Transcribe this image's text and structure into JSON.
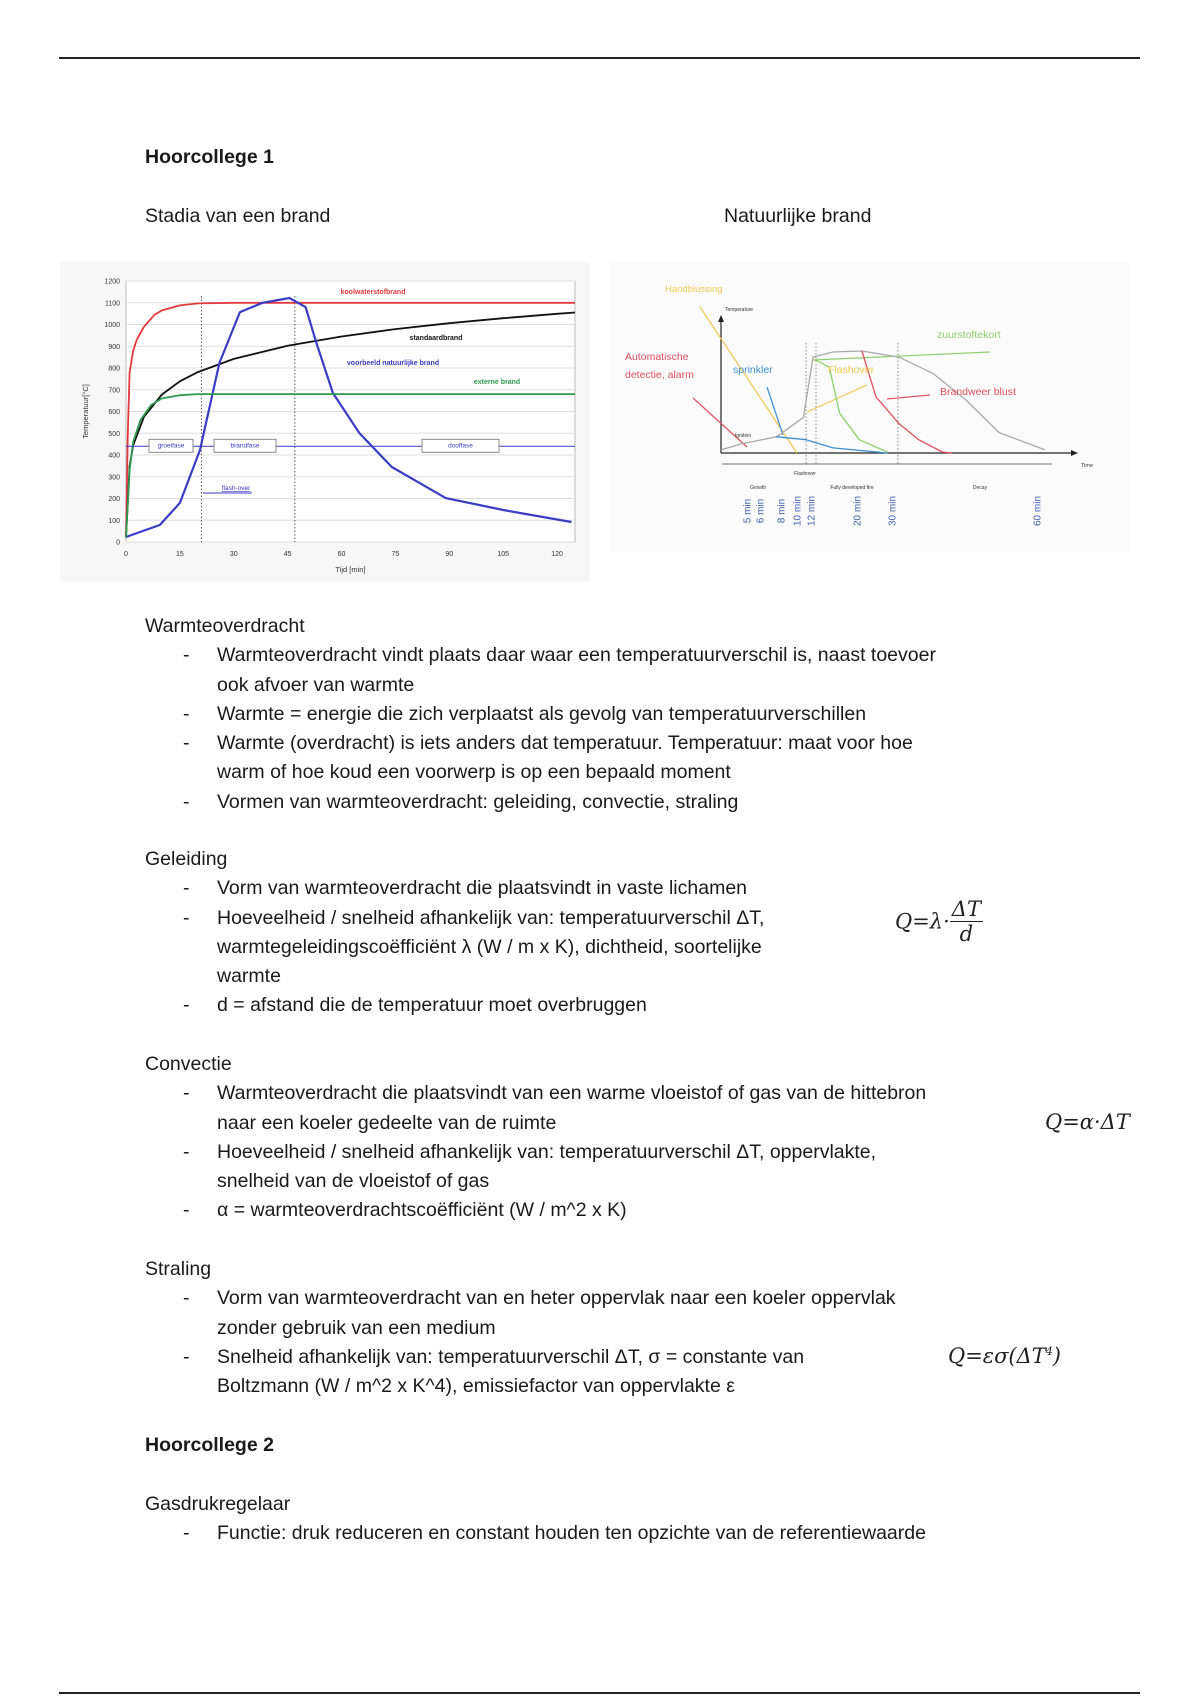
{
  "section1": {
    "title": "Hoorcollege 1",
    "left_caption": "Stadia van een brand",
    "right_caption": "Natuurlijke brand"
  },
  "warmteoverdracht": {
    "heading": "Warmteoverdracht",
    "bullets": [
      [
        "Warmteoverdracht vindt plaats daar waar een temperatuurverschil is, naast toevoer",
        "ook afvoer van warmte"
      ],
      [
        "Warmte = energie die zich verplaatst als gevolg van temperatuurverschillen"
      ],
      [
        "Warmte (overdracht) is iets anders dat temperatuur. Temperatuur: maat voor hoe",
        "warm of hoe koud een voorwerp is op een bepaald moment"
      ],
      [
        "Vormen van warmteoverdracht: geleiding, convectie, straling"
      ]
    ]
  },
  "geleiding": {
    "heading": "Geleiding",
    "bullets": [
      [
        "Vorm van warmteoverdracht die plaatsvindt in vaste lichamen"
      ],
      [
        "Hoeveelheid / snelheid afhankelijk van: temperatuurverschil ΔT,",
        "warmtegeleidingscoëfficiënt λ (W / m x K), dichtheid, soortelijke",
        "warmte"
      ],
      [
        "d = afstand die de temperatuur moet overbruggen"
      ]
    ],
    "formula": {
      "lhs": "Q=λ·",
      "num": "ΔT",
      "den": "d"
    }
  },
  "convectie": {
    "heading": "Convectie",
    "bullets": [
      [
        "Warmteoverdracht die plaatsvindt van een warme vloeistof of gas van de hittebron",
        "naar een koeler gedeelte van de ruimte"
      ],
      [
        "Hoeveelheid / snelheid afhankelijk van: temperatuurverschil ΔT, oppervlakte,",
        "snelheid van de vloeistof of gas"
      ],
      [
        "α = warmteoverdrachtscoëfficiënt (W / m^2 x K)"
      ]
    ],
    "formula": "Q=α·ΔT"
  },
  "straling": {
    "heading": "Straling",
    "bullets": [
      [
        "Vorm van warmteoverdracht van en heter oppervlak naar een koeler oppervlak",
        "zonder gebruik van een medium"
      ],
      [
        "Snelheid afhankelijk van: temperatuurverschil ΔT, σ = constante van",
        "Boltzmann (W / m^2 x K^4), emissiefactor van oppervlakte ε"
      ]
    ],
    "formula": {
      "base": "Q=εσ(ΔT",
      "exp": "4",
      "close": ")"
    }
  },
  "section2": {
    "title": "Hoorcollege 2"
  },
  "gasdrukregelaar": {
    "heading": "Gasdrukregelaar",
    "bullets": [
      [
        "Functie: druk reduceren en constant houden ten opzichte van de referentiewaarde"
      ]
    ]
  },
  "bullet_marker": "-",
  "chart_data": [
    {
      "type": "line",
      "xlabel": "Tijd [min]",
      "ylabel": "Temperatuur[°C]",
      "xlim": [
        0,
        125
      ],
      "ylim": [
        0,
        1200
      ],
      "xticks": [
        0,
        15,
        30,
        45,
        60,
        75,
        90,
        105,
        120
      ],
      "yticks": [
        0,
        100,
        200,
        300,
        400,
        500,
        600,
        700,
        800,
        900,
        1000,
        1100,
        1200
      ],
      "grid": true,
      "series": [
        {
          "name": "koolwaterstofbrand",
          "color": "#e0393e",
          "x": [
            0,
            0.5,
            1,
            2,
            3,
            5,
            8,
            10,
            15,
            20,
            30,
            125
          ],
          "y": [
            20,
            500,
            780,
            880,
            930,
            990,
            1045,
            1065,
            1088,
            1097,
            1100,
            1100
          ]
        },
        {
          "name": "standaardbrand",
          "color": "#111111",
          "x": [
            0,
            1,
            2,
            5,
            10,
            15,
            20,
            30,
            45,
            60,
            75,
            90,
            105,
            120,
            125
          ],
          "y": [
            20,
            349,
            445,
            576,
            678,
            739,
            781,
            842,
            902,
            945,
            979,
            1006,
            1029,
            1049,
            1055
          ]
        },
        {
          "name": "voorbeeld natuurlijke brand",
          "color": "#3b3bc4",
          "x": [
            0,
            9.4,
            15,
            20.6,
            26,
            31.7,
            38,
            45.5,
            50,
            53,
            57.6,
            65,
            74,
            89,
            105,
            124
          ],
          "y": [
            23,
            78,
            180,
            423,
            823,
            1057,
            1100,
            1122,
            1080,
            915,
            685,
            500,
            345,
            202,
            147,
            92
          ]
        },
        {
          "name": "externe brand",
          "color": "#2e9a4e",
          "x": [
            0,
            1,
            2,
            4,
            7,
            10,
            15,
            20,
            125
          ],
          "y": [
            20,
            330,
            460,
            560,
            630,
            660,
            675,
            680,
            680
          ]
        }
      ],
      "phases": {
        "level": 440,
        "labels": [
          "groeifase",
          "brandfase",
          "dooffase"
        ]
      },
      "markers": {
        "flashover_label": "flash-over",
        "verticals": [
          21,
          47
        ]
      }
    },
    {
      "type": "line",
      "ylabel": "Temperature",
      "xlabel": "Time",
      "time_labels": [
        "5 min",
        "6 min",
        "8 min",
        "10 min",
        "12 min",
        "20 min",
        "30 min",
        "60 min"
      ],
      "time_values": [
        5,
        6,
        8,
        10,
        12,
        20,
        30,
        60
      ],
      "phases": [
        "Growth",
        "Fully developed fire",
        "Decay"
      ],
      "flashover_caption": "Flashover",
      "ignition_label": "Ignition",
      "series": [
        {
          "name": "",
          "color": "#a9a9a9",
          "x": [
            0,
            4,
            7.6,
            9.8,
            11.4,
            15.3,
            21.3,
            30.8,
            38,
            45,
            52,
            62
          ],
          "y": [
            0.03,
            0.09,
            0.16,
            0.35,
            0.94,
            0.99,
            1.0,
            0.94,
            0.78,
            0.52,
            0.2,
            0.03
          ]
        },
        {
          "name": "sprinkler",
          "color": "#3d8fd0",
          "x": [
            7.5,
            10,
            15.3,
            28
          ],
          "y": [
            0.16,
            0.13,
            0.05,
            0.0
          ]
        },
        {
          "name": "zuurstoftekort",
          "color": "#8fcf6a",
          "x": [
            12,
            14.6,
            16.6,
            20.6,
            28
          ],
          "y": [
            0.91,
            0.84,
            0.39,
            0.13,
            0.01
          ]
        },
        {
          "name": "Brandweer blust",
          "color": "#e05060",
          "x": [
            21.3,
            25,
            30.8,
            35,
            40,
            42
          ],
          "y": [
            1.0,
            0.55,
            0.29,
            0.13,
            0.01,
            0.0
          ]
        }
      ],
      "annotations": [
        {
          "text": "Handblussing",
          "color": "#f0c850"
        },
        {
          "text": "zuurstoftekort",
          "color": "#8fcf6a"
        },
        {
          "text": "Automatische",
          "color": "#e05060"
        },
        {
          "text": "detectie, alarm",
          "color": "#e05060"
        },
        {
          "text": "sprinkler",
          "color": "#3d8fd0"
        },
        {
          "text": "Flashover",
          "color": "#f0c850"
        },
        {
          "text": "Brandweer blust",
          "color": "#e05060"
        }
      ]
    }
  ]
}
